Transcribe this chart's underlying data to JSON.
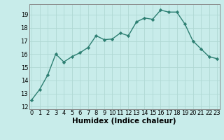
{
  "x": [
    0,
    1,
    2,
    3,
    4,
    5,
    6,
    7,
    8,
    9,
    10,
    11,
    12,
    13,
    14,
    15,
    16,
    17,
    18,
    19,
    20,
    21,
    22,
    23
  ],
  "y": [
    12.5,
    13.3,
    14.4,
    16.0,
    15.4,
    15.8,
    16.1,
    16.5,
    17.4,
    17.1,
    17.15,
    17.6,
    17.4,
    18.45,
    18.75,
    18.65,
    19.35,
    19.2,
    19.2,
    18.3,
    17.0,
    16.4,
    15.8,
    15.65
  ],
  "line_color": "#2d7f72",
  "marker": "D",
  "markersize": 2.2,
  "linewidth": 1.0,
  "background_color": "#c8ecea",
  "grid_color": "#b0d8d4",
  "xlabel": "Humidex (Indice chaleur)",
  "xlabel_fontsize": 7.5,
  "xlabel_fontweight": "bold",
  "ytick_labels": [
    "12",
    "13",
    "14",
    "15",
    "16",
    "17",
    "18",
    "19"
  ],
  "ytick_vals": [
    12,
    13,
    14,
    15,
    16,
    17,
    18,
    19
  ],
  "xtick_vals": [
    0,
    1,
    2,
    3,
    4,
    5,
    6,
    7,
    8,
    9,
    10,
    11,
    12,
    13,
    14,
    15,
    16,
    17,
    18,
    19,
    20,
    21,
    22,
    23
  ],
  "xlim": [
    -0.3,
    23.3
  ],
  "ylim": [
    11.8,
    19.8
  ],
  "tick_fontsize": 6.0
}
